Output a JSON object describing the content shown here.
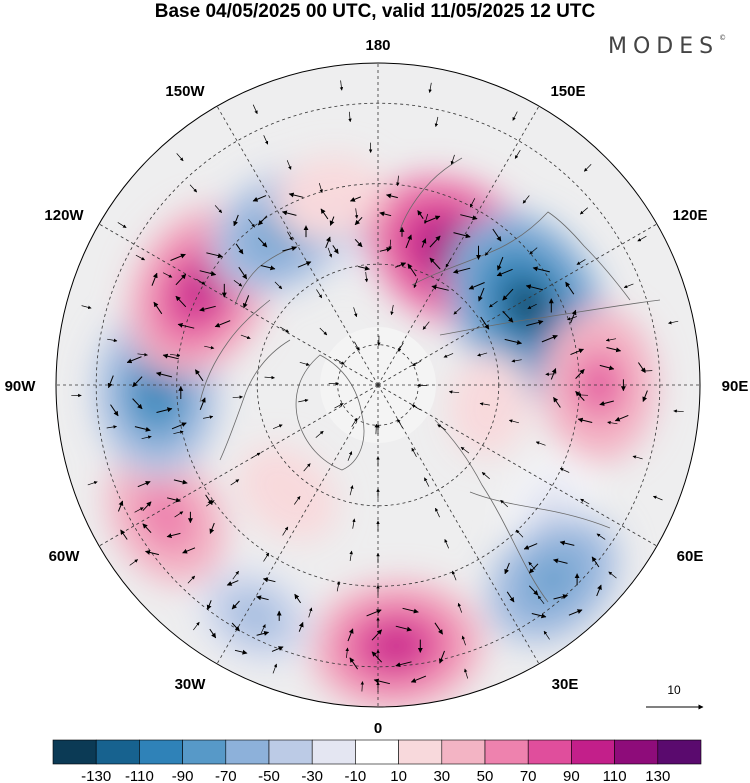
{
  "title": "Base 04/05/2025 00 UTC, valid 11/05/2025 12 UTC",
  "brand": {
    "name": "MODES",
    "mark": "©"
  },
  "longitude_labels": {
    "lon_180": "180",
    "lon_150e": "150E",
    "lon_120e": "120E",
    "lon_90e": "90E",
    "lon_60e": "60E",
    "lon_30e": "30E",
    "lon_0": "0",
    "lon_30w": "30W",
    "lon_60w": "60W",
    "lon_90w": "90W",
    "lon_120w": "120W",
    "lon_150w": "150W"
  },
  "reference_vector": {
    "value": "10"
  },
  "colorbar": {
    "labels": [
      "-130",
      "-110",
      "-90",
      "-70",
      "-50",
      "-30",
      "-10",
      "10",
      "30",
      "50",
      "70",
      "90",
      "110",
      "130"
    ],
    "colors": [
      "#0b3a55",
      "#17628f",
      "#2f82b8",
      "#5799c8",
      "#8db1da",
      "#bccbe6",
      "#e4e6f2",
      "#ffffff",
      "#f8d9dc",
      "#f3b4c4",
      "#ee82ae",
      "#e04e9c",
      "#c31f8a",
      "#8e0c7a",
      "#5a0a6e"
    ]
  },
  "anomaly_centers": [
    {
      "lon": 180,
      "lat": 52,
      "value": -40
    },
    {
      "lon": 150,
      "lat": 52,
      "value": 120
    },
    {
      "lon": 118,
      "lat": 48,
      "value": -130
    },
    {
      "lon": 90,
      "lat": 35,
      "value": 80
    },
    {
      "lon": 55,
      "lat": 38,
      "value": -20
    },
    {
      "lon": 42,
      "lat": 25,
      "value": -80
    },
    {
      "lon": 4,
      "lat": 25,
      "value": 105
    },
    {
      "lon": -28,
      "lat": 25,
      "value": -50
    },
    {
      "lon": -58,
      "lat": 28,
      "value": 70
    },
    {
      "lon": -88,
      "lat": 35,
      "value": -100
    },
    {
      "lon": -118,
      "lat": 40,
      "value": 110
    },
    {
      "lon": -148,
      "lat": 45,
      "value": -80
    },
    {
      "lon": -165,
      "lat": 42,
      "value": 30
    },
    {
      "lon": -40,
      "lat": 55,
      "value": 30
    },
    {
      "lon": 80,
      "lat": 62,
      "value": 25
    }
  ]
}
